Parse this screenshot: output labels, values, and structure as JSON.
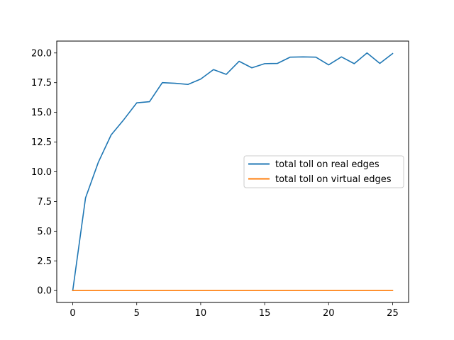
{
  "chart_data": {
    "type": "line",
    "title": "",
    "xlabel": "",
    "ylabel": "",
    "xlim": [
      -1.25,
      26.25
    ],
    "ylim": [
      -1.0,
      21.0
    ],
    "x_ticks": [
      0,
      5,
      10,
      15,
      20,
      25
    ],
    "x_tick_labels": [
      "0",
      "5",
      "10",
      "15",
      "20",
      "25"
    ],
    "y_ticks": [
      0,
      2.5,
      5,
      7.5,
      10,
      12.5,
      15,
      17.5,
      20
    ],
    "y_tick_labels": [
      "0.0",
      "2.5",
      "5.0",
      "7.5",
      "10.0",
      "12.5",
      "15.0",
      "17.5",
      "20.0"
    ],
    "grid": false,
    "legend_position": "center-right",
    "x": [
      0,
      1,
      2,
      3,
      4,
      5,
      6,
      7,
      8,
      9,
      10,
      11,
      12,
      13,
      14,
      15,
      16,
      17,
      18,
      19,
      20,
      21,
      22,
      23,
      24,
      25
    ],
    "series": [
      {
        "name": "total toll on real edges",
        "color": "#1f77b4",
        "values": [
          0.0,
          7.8,
          10.8,
          13.1,
          14.4,
          15.8,
          15.9,
          17.5,
          17.45,
          17.35,
          17.8,
          18.6,
          18.2,
          19.3,
          18.75,
          19.1,
          19.12,
          19.65,
          19.67,
          19.65,
          19.0,
          19.67,
          19.1,
          20.0,
          19.12,
          19.95
        ]
      },
      {
        "name": "total toll on virtual edges",
        "color": "#ff7f0e",
        "values": [
          0,
          0,
          0,
          0,
          0,
          0,
          0,
          0,
          0,
          0,
          0,
          0,
          0,
          0,
          0,
          0,
          0,
          0,
          0,
          0,
          0,
          0,
          0,
          0,
          0,
          0
        ]
      }
    ]
  }
}
